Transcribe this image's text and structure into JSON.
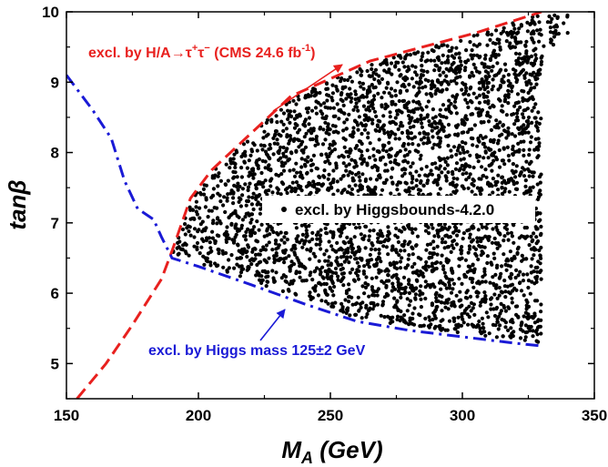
{
  "chart_data": {
    "type": "scatter",
    "title": "",
    "xlabel_main": "M",
    "xlabel_sub": "A",
    "xlabel_unit": " (GeV)",
    "ylabel": "tanβ",
    "xlim": [
      150,
      350
    ],
    "ylim": [
      4.5,
      10
    ],
    "x_ticks": [
      150,
      200,
      250,
      300,
      350
    ],
    "y_ticks": [
      5,
      6,
      7,
      8,
      9,
      10
    ],
    "grid": false,
    "legend": {
      "placement": "center",
      "entries": [
        {
          "name": "excl. by Higgsbounds-4.2.0",
          "marker": "dot",
          "color": "#000000"
        }
      ]
    },
    "series": [
      {
        "name": "excl. by H/A→τ⁺τ⁻ (CMS 24.6 fb⁻¹)",
        "kind": "line",
        "style": "dashed",
        "color": "#e8201e",
        "x": [
          154,
          165,
          175,
          186,
          190,
          197,
          205,
          215,
          225,
          235,
          250,
          265,
          285,
          305,
          320,
          330
        ],
        "y": [
          4.5,
          5.0,
          5.55,
          6.2,
          6.6,
          7.35,
          7.75,
          8.1,
          8.45,
          8.8,
          9.05,
          9.3,
          9.5,
          9.7,
          9.88,
          10.0
        ]
      },
      {
        "name": "excl. by Higgs mass 125±2 GeV",
        "kind": "line",
        "style": "dash-dot",
        "color": "#1a1ad6",
        "x": [
          150,
          160,
          167,
          172,
          177,
          183,
          186,
          190,
          200,
          220,
          240,
          260,
          280,
          300,
          320,
          330
        ],
        "y": [
          9.1,
          8.6,
          8.2,
          7.6,
          7.2,
          7.05,
          6.8,
          6.5,
          6.38,
          6.12,
          5.85,
          5.6,
          5.47,
          5.38,
          5.29,
          5.25
        ]
      },
      {
        "name": "excl. by Higgsbounds-4.2.0",
        "kind": "scatter",
        "color": "#000000",
        "region_x": [
          189,
          340
        ],
        "region_y": [
          5.25,
          10
        ]
      }
    ],
    "annotations": [
      {
        "name": "cms-annotation",
        "text_main": "excl. by H/A→τ",
        "sup1": "+",
        "text_mid": "τ",
        "sup2": "−",
        "text_tail": " (CMS 24.6 fb",
        "sup3": "-1",
        "text_end": ")",
        "color": "#e8201e"
      },
      {
        "name": "higgs-mass-annotation",
        "text": "excl. by Higgs mass 125±2 GeV",
        "color": "#1a1ad6"
      }
    ]
  }
}
